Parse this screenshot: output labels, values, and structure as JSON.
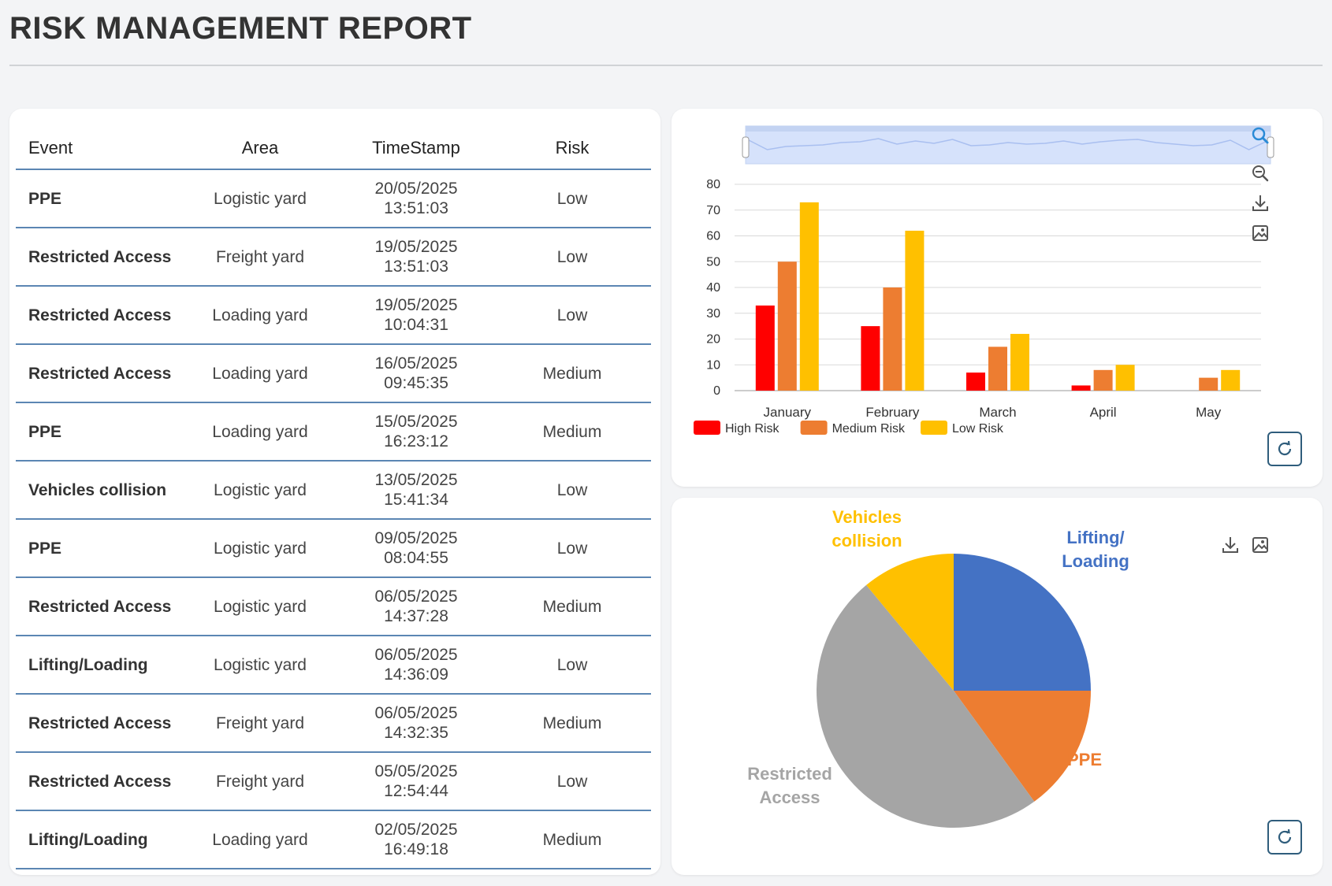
{
  "page": {
    "title": "RISK MANAGEMENT REPORT"
  },
  "table": {
    "columns": [
      "Event",
      "Area",
      "TimeStamp",
      "Risk"
    ],
    "rows": [
      {
        "event": "PPE",
        "area": "Logistic yard",
        "date": "20/05/2025",
        "time": "13:51:03",
        "risk": "Low"
      },
      {
        "event": "Restricted Access",
        "area": "Freight yard",
        "date": "19/05/2025",
        "time": "13:51:03",
        "risk": "Low"
      },
      {
        "event": "Restricted Access",
        "area": "Loading yard",
        "date": "19/05/2025",
        "time": "10:04:31",
        "risk": "Low"
      },
      {
        "event": "Restricted Access",
        "area": "Loading yard",
        "date": "16/05/2025",
        "time": "09:45:35",
        "risk": "Medium"
      },
      {
        "event": "PPE",
        "area": "Loading yard",
        "date": "15/05/2025",
        "time": "16:23:12",
        "risk": "Medium"
      },
      {
        "event": "Vehicles collision",
        "area": "Logistic yard",
        "date": "13/05/2025",
        "time": "15:41:34",
        "risk": "Low"
      },
      {
        "event": "PPE",
        "area": "Logistic yard",
        "date": "09/05/2025",
        "time": "08:04:55",
        "risk": "Low"
      },
      {
        "event": "Restricted Access",
        "area": "Logistic yard",
        "date": "06/05/2025",
        "time": "14:37:28",
        "risk": "Medium"
      },
      {
        "event": "Lifting/Loading",
        "area": "Logistic yard",
        "date": "06/05/2025",
        "time": "14:36:09",
        "risk": "Low"
      },
      {
        "event": "Restricted Access",
        "area": "Freight yard",
        "date": "06/05/2025",
        "time": "14:32:35",
        "risk": "Medium"
      },
      {
        "event": "Restricted Access",
        "area": "Freight yard",
        "date": "05/05/2025",
        "time": "12:54:44",
        "risk": "Low"
      },
      {
        "event": "Lifting/Loading",
        "area": "Loading yard",
        "date": "02/05/2025",
        "time": "16:49:18",
        "risk": "Medium"
      }
    ]
  },
  "bar_toolbar": [
    "zoom-select-icon",
    "zoom-reset-icon",
    "download-icon",
    "save-image-icon"
  ],
  "pie_toolbar": [
    "download-icon",
    "save-image-icon"
  ],
  "colors": {
    "high": "#ff0000",
    "medium": "#ed7d31",
    "low": "#ffc000",
    "lifting": "#4472c4",
    "ppe": "#ed7d31",
    "restricted": "#a5a5a5",
    "vehicles": "#ffc000",
    "grid": "#d9d9d9",
    "table_rule": "#5b86b3"
  },
  "chart_data": [
    {
      "type": "bar",
      "categories": [
        "January",
        "February",
        "March",
        "April",
        "May"
      ],
      "series": [
        {
          "name": "High Risk",
          "values": [
            33,
            25,
            7,
            2,
            0
          ]
        },
        {
          "name": "Medium Risk",
          "values": [
            50,
            40,
            17,
            8,
            5
          ]
        },
        {
          "name": "Low Risk",
          "values": [
            73,
            62,
            22,
            10,
            8
          ]
        }
      ],
      "ylim": [
        0,
        80
      ],
      "yticks": [
        0,
        10,
        20,
        30,
        40,
        50,
        60,
        70,
        80
      ],
      "grid": true,
      "legend": "bottom-left"
    },
    {
      "type": "pie",
      "slices": [
        {
          "label": "Lifting/ Loading",
          "value": 25
        },
        {
          "label": "PPE",
          "value": 15
        },
        {
          "label": "Restricted Access",
          "value": 49
        },
        {
          "label": "Vehicles collision",
          "value": 11
        }
      ]
    }
  ]
}
